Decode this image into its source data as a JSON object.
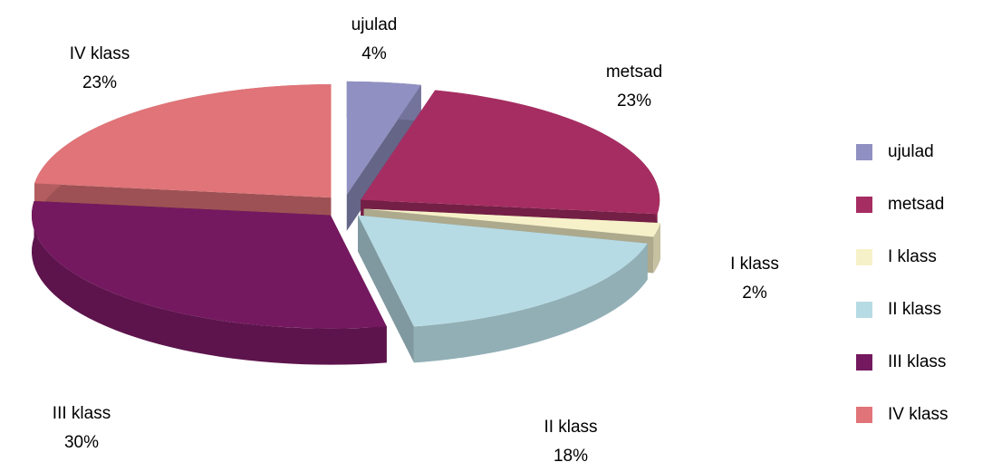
{
  "chart_data": {
    "type": "pie",
    "categories": [
      "ujulad",
      "metsad",
      "I klass",
      "II klass",
      "III klass",
      "IV klass"
    ],
    "values": [
      4,
      23,
      2,
      18,
      30,
      23
    ],
    "value_labels": [
      "4%",
      "23%",
      "2%",
      "18%",
      "30%",
      "23%"
    ],
    "colors": [
      "#9090c2",
      "#a62d62",
      "#f7f1c9",
      "#b7dbe4",
      "#74195f",
      "#e07478"
    ],
    "legend": "right"
  }
}
